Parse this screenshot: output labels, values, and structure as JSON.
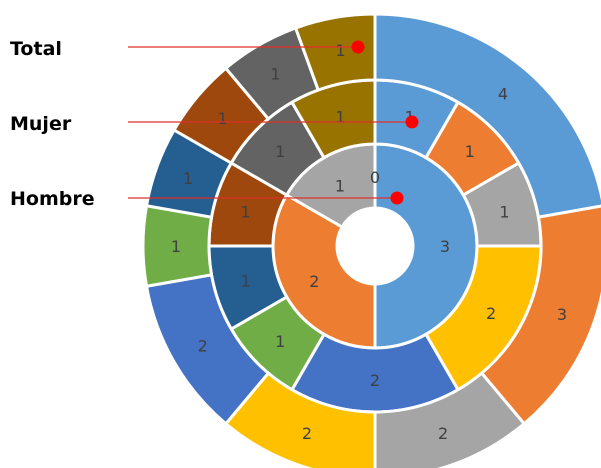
{
  "chart_data": {
    "type": "doughnut",
    "title": "",
    "center_value": "0",
    "rings": [
      {
        "name": "Hombre",
        "values": [
          3,
          2,
          1,
          0
        ],
        "colors": [
          "#5b9bd5",
          "#ed7d31",
          "#a5a5a5",
          "#ffffff"
        ],
        "labels": [
          "3",
          "2",
          "1",
          "0"
        ]
      },
      {
        "name": "Mujer",
        "values": [
          1,
          1,
          1,
          2,
          2,
          1,
          1,
          1,
          1,
          1
        ],
        "colors": [
          "#5b9bd5",
          "#ed7d31",
          "#a5a5a5",
          "#ffc000",
          "#4472c4",
          "#70ad47",
          "#255e91",
          "#9e480e",
          "#636363",
          "#997300"
        ],
        "labels": [
          "1",
          "1",
          "1",
          "2",
          "2",
          "1",
          "1",
          "1",
          "1",
          "1"
        ]
      },
      {
        "name": "Total",
        "values": [
          4,
          3,
          2,
          2,
          2,
          1,
          1,
          1,
          1,
          1
        ],
        "colors": [
          "#5b9bd5",
          "#ed7d31",
          "#a5a5a5",
          "#ffc000",
          "#4472c4",
          "#70ad47",
          "#255e91",
          "#9e480e",
          "#636363",
          "#997300"
        ],
        "labels": [
          "4",
          "3",
          "2",
          "2",
          "2",
          "1",
          "1",
          "1",
          "1",
          "1"
        ]
      }
    ],
    "legend": [
      "Total",
      "Mujer",
      "Hombre"
    ],
    "legend_marker_color": "#ff0000"
  }
}
